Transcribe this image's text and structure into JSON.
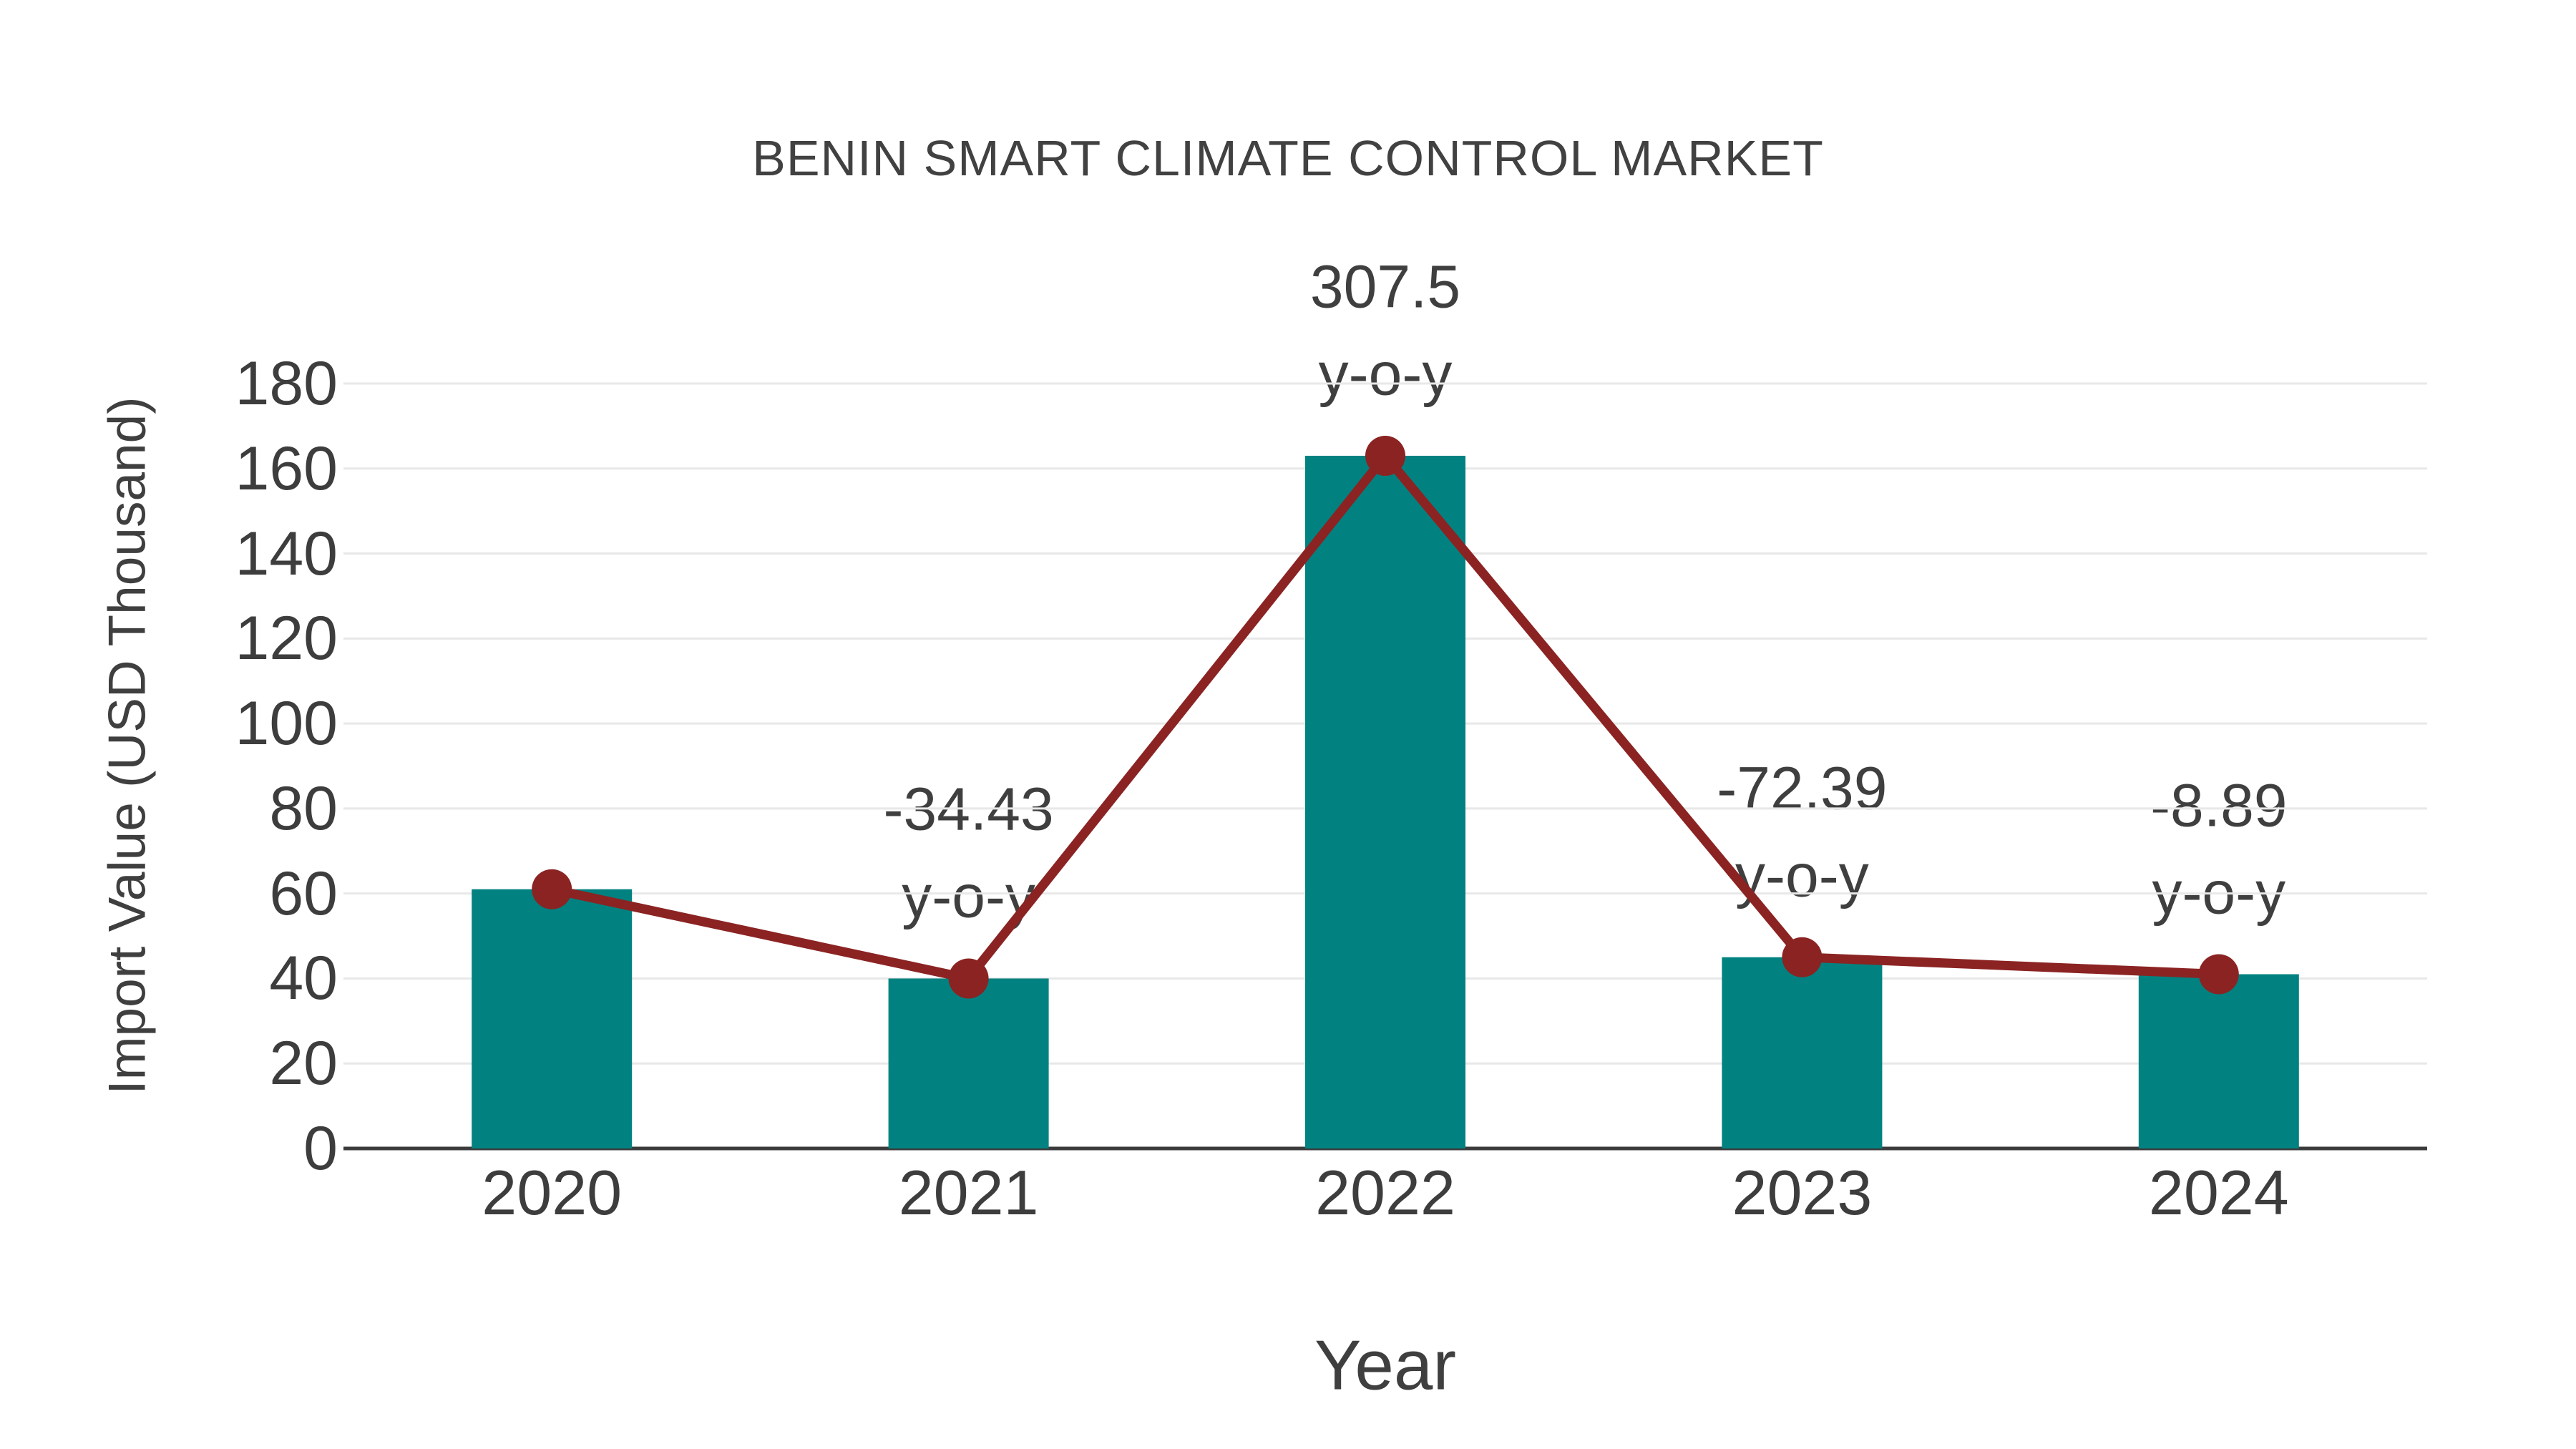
{
  "chart_data": {
    "type": "bar",
    "title": "BENIN SMART CLIMATE CONTROL MARKET",
    "xlabel": "Year",
    "ylabel": "Import Value (USD Thousand)",
    "categories": [
      "2020",
      "2021",
      "2022",
      "2023",
      "2024"
    ],
    "series": [
      {
        "name": "import-value-bars",
        "type": "bar",
        "values": [
          61,
          40,
          163,
          45,
          41
        ],
        "color": "#018280"
      },
      {
        "name": "import-value-trend-line",
        "type": "line",
        "values": [
          61,
          40,
          163,
          45,
          41
        ],
        "color": "#8b2323"
      }
    ],
    "annotations": [
      {
        "category": "2021",
        "value_label": "-34.43",
        "unit_label": "y-o-y"
      },
      {
        "category": "2022",
        "value_label": "307.5",
        "unit_label": "y-o-y"
      },
      {
        "category": "2023",
        "value_label": "-72.39",
        "unit_label": "y-o-y"
      },
      {
        "category": "2024",
        "value_label": "-8.89",
        "unit_label": "y-o-y"
      }
    ],
    "y_ticks": [
      0,
      20,
      40,
      60,
      80,
      100,
      120,
      140,
      160,
      180
    ],
    "ylim": [
      0,
      180
    ],
    "grid": true,
    "legend_position": "none",
    "colors": {
      "bar": "#018280",
      "line": "#8b2323",
      "gridline": "#e8e8e8",
      "axis": "#3b3b3b",
      "text": "#3f3f3f",
      "background": "#ffffff"
    }
  }
}
